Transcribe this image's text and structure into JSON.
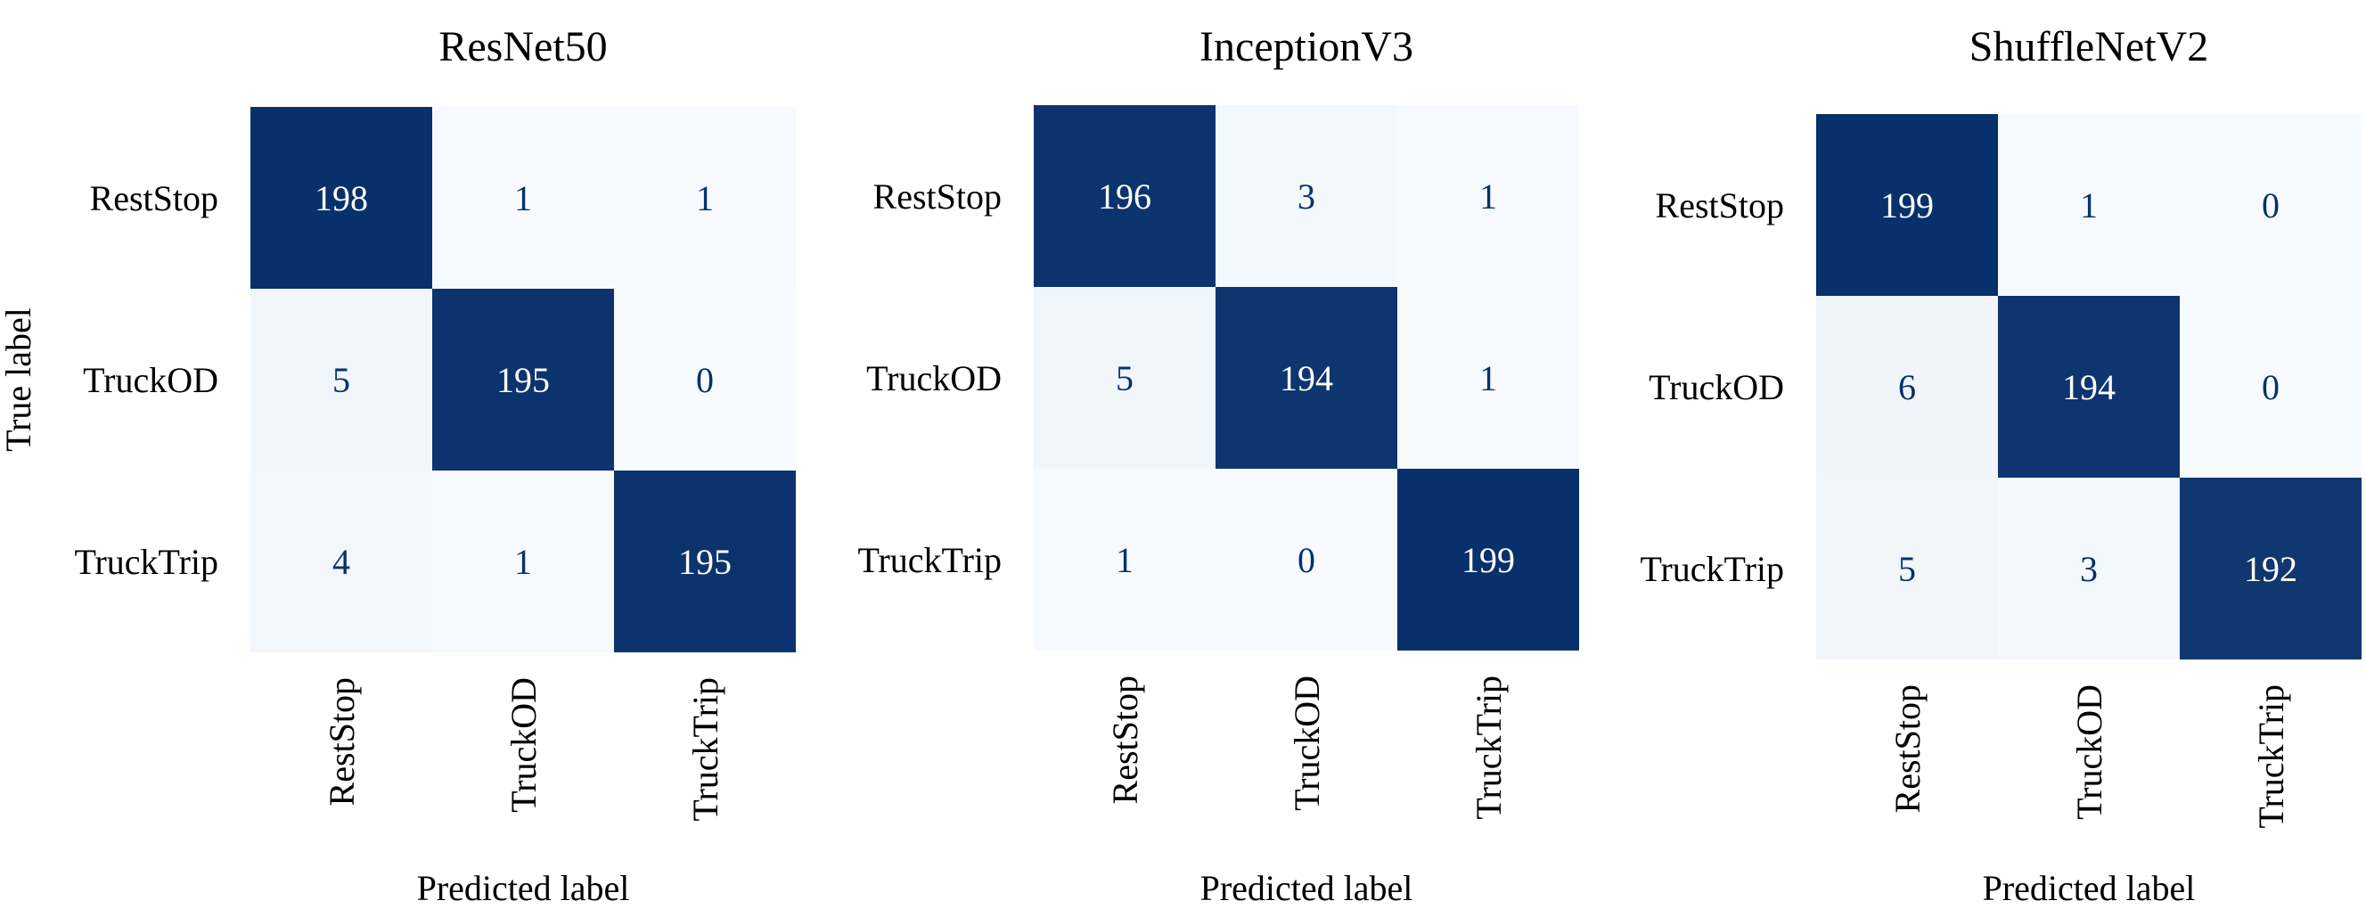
{
  "chart_data": [
    {
      "type": "heatmap",
      "title": "ResNet50",
      "xlabel": "Predicted label",
      "ylabel": "True label",
      "x_categories": [
        "RestStop",
        "TruckOD",
        "TruckTrip"
      ],
      "y_categories": [
        "RestStop",
        "TruckOD",
        "TruckTrip"
      ],
      "values": [
        [
          198,
          1,
          1
        ],
        [
          5,
          195,
          0
        ],
        [
          4,
          1,
          195
        ]
      ],
      "colormap": "Blues",
      "vmin": 0,
      "vmax": 198
    },
    {
      "type": "heatmap",
      "title": "InceptionV3",
      "xlabel": "Predicted label",
      "ylabel": "",
      "x_categories": [
        "RestStop",
        "TruckOD",
        "TruckTrip"
      ],
      "y_categories": [
        "RestStop",
        "TruckOD",
        "TruckTrip"
      ],
      "values": [
        [
          196,
          3,
          1
        ],
        [
          5,
          194,
          1
        ],
        [
          1,
          0,
          199
        ]
      ],
      "colormap": "Blues",
      "vmin": 0,
      "vmax": 199
    },
    {
      "type": "heatmap",
      "title": "ShuffleNetV2",
      "xlabel": "Predicted label",
      "ylabel": "",
      "x_categories": [
        "RestStop",
        "TruckOD",
        "TruckTrip"
      ],
      "y_categories": [
        "RestStop",
        "TruckOD",
        "TruckTrip"
      ],
      "values": [
        [
          199,
          1,
          0
        ],
        [
          6,
          194,
          0
        ],
        [
          5,
          3,
          192
        ]
      ],
      "colormap": "Blues",
      "vmin": 0,
      "vmax": 199
    }
  ],
  "colors": {
    "low": "#f7fbff",
    "high": "#08306b",
    "text_dark": "#08306b",
    "text_light": "#ffffff"
  }
}
